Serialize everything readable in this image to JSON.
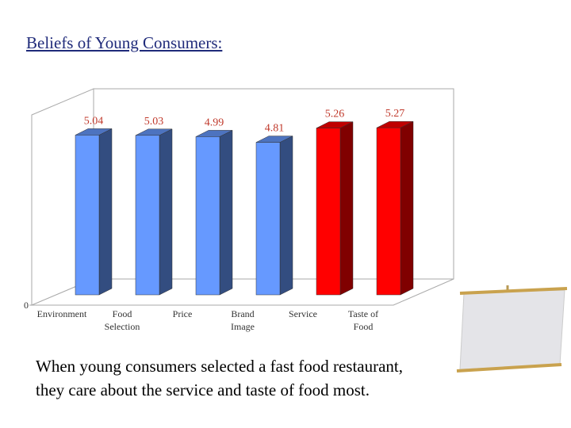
{
  "title": "Beliefs of Young Consumers:",
  "chart_data": {
    "type": "bar3d",
    "categories": [
      "Environment",
      "Food Selection",
      "Price",
      "Brand Image",
      "Service",
      "Taste of Food"
    ],
    "values": [
      5.04,
      5.03,
      4.99,
      4.81,
      5.26,
      5.27
    ],
    "colors": [
      "#6699ff",
      "#6699ff",
      "#6699ff",
      "#6699ff",
      "#ff0000",
      "#ff0000"
    ],
    "ylim": [
      0,
      6
    ],
    "yticks": [
      0
    ],
    "grid": false
  },
  "caption": [
    "When young consumers selected a fast food restaurant,",
    "they care about the service and taste of food most."
  ]
}
